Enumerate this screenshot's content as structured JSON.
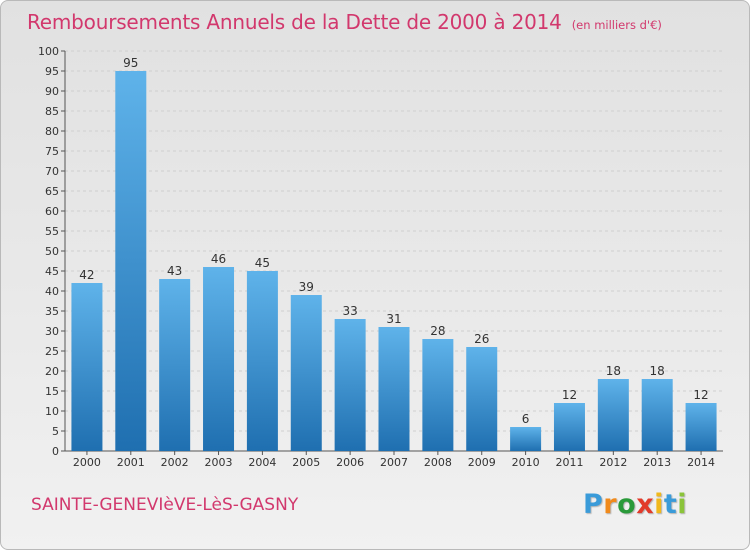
{
  "header": {
    "title": "Remboursements Annuels de la Dette de 2000 à 2014",
    "unit": "(en milliers d'€)"
  },
  "footer": {
    "city": "SAINTE-GENEVIèVE-LèS-GASNY",
    "logo_letters": [
      "P",
      "r",
      "o",
      "x",
      "i",
      "t",
      "i"
    ],
    "logo_colors": [
      "#3a9bd9",
      "#f08a1c",
      "#2a9a3a",
      "#e23a2a",
      "#f0b81c",
      "#3a9bd9",
      "#8bc43a"
    ]
  },
  "colors": {
    "title": "#d2386d",
    "bar_top": "#5fb3ea",
    "bar_bottom": "#1f6fb0",
    "grid": "#cfcfcf",
    "axis": "#555555"
  },
  "chart_data": {
    "type": "bar",
    "categories": [
      "2000",
      "2001",
      "2002",
      "2003",
      "2004",
      "2005",
      "2006",
      "2007",
      "2008",
      "2009",
      "2010",
      "2011",
      "2012",
      "2013",
      "2014"
    ],
    "values": [
      42,
      95,
      43,
      46,
      45,
      39,
      33,
      31,
      28,
      26,
      6,
      12,
      18,
      18,
      12
    ],
    "ylim": [
      0,
      100
    ],
    "ytick_step": 5,
    "grid": true,
    "data_labels": true
  }
}
